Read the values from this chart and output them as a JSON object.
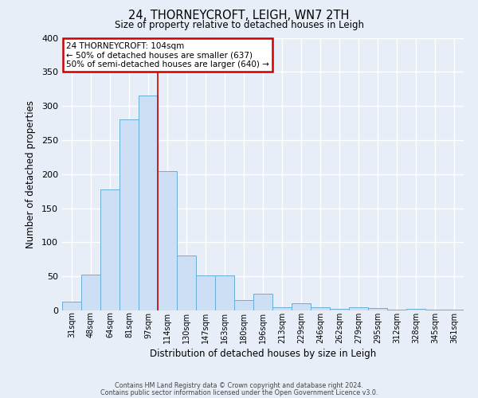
{
  "title": "24, THORNEYCROFT, LEIGH, WN7 2TH",
  "subtitle": "Size of property relative to detached houses in Leigh",
  "xlabel": "Distribution of detached houses by size in Leigh",
  "ylabel": "Number of detached properties",
  "bar_color": "#ccdff5",
  "bar_edge_color": "#6aaed6",
  "background_color": "#e8eef8",
  "plot_bg_color": "#e8eef8",
  "grid_color": "#ffffff",
  "categories": [
    "31sqm",
    "48sqm",
    "64sqm",
    "81sqm",
    "97sqm",
    "114sqm",
    "130sqm",
    "147sqm",
    "163sqm",
    "180sqm",
    "196sqm",
    "213sqm",
    "229sqm",
    "246sqm",
    "262sqm",
    "279sqm",
    "295sqm",
    "312sqm",
    "328sqm",
    "345sqm",
    "361sqm"
  ],
  "values": [
    13,
    53,
    177,
    280,
    315,
    204,
    81,
    51,
    51,
    15,
    25,
    5,
    10,
    5,
    2,
    5,
    3,
    1,
    2,
    1,
    1
  ],
  "red_line_x": 4.5,
  "annotation_title": "24 THORNEYCROFT: 104sqm",
  "annotation_line1": "← 50% of detached houses are smaller (637)",
  "annotation_line2": "50% of semi-detached houses are larger (640) →",
  "annotation_box_color": "#ffffff",
  "annotation_box_edge_color": "#cc0000",
  "red_line_color": "#cc0000",
  "ylim": [
    0,
    400
  ],
  "yticks": [
    0,
    50,
    100,
    150,
    200,
    250,
    300,
    350,
    400
  ],
  "footer1": "Contains HM Land Registry data © Crown copyright and database right 2024.",
  "footer2": "Contains public sector information licensed under the Open Government Licence v3.0."
}
